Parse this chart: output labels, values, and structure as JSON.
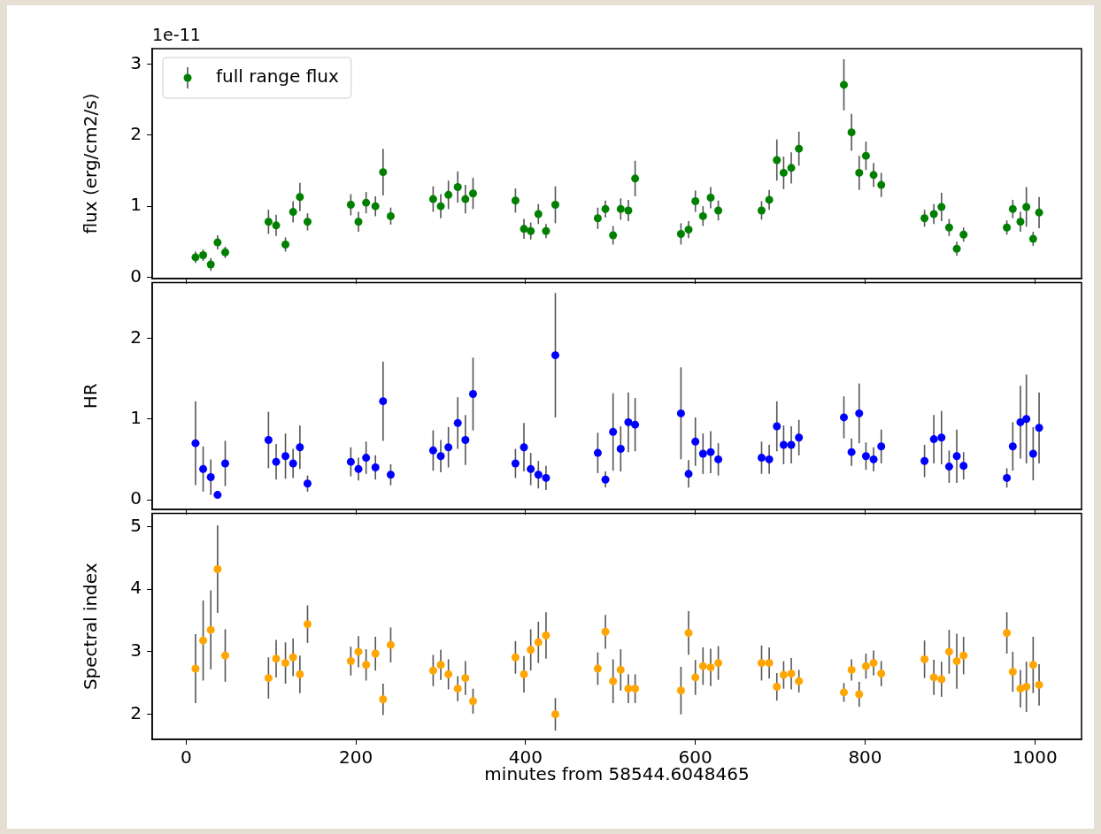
{
  "chart_data": [
    {
      "type": "scatter",
      "ylabel": "flux (erg/cm2/s)",
      "annotations": [
        "1e-11"
      ],
      "legend": "top left",
      "marker": "circle",
      "grid": false,
      "tick_labels": "y",
      "xlim": [
        -40,
        1055
      ],
      "xticks": [
        0,
        200,
        400,
        600,
        800,
        1000
      ],
      "ylim": [
        -0.02,
        3.22
      ],
      "yticks": [
        0,
        1,
        2,
        3
      ],
      "x": [
        11,
        20,
        29,
        37,
        46,
        97,
        106,
        117,
        126,
        134,
        143,
        194,
        203,
        212,
        223,
        232,
        241,
        291,
        300,
        309,
        320,
        329,
        338,
        388,
        398,
        406,
        415,
        424,
        435,
        485,
        494,
        503,
        512,
        521,
        529,
        583,
        592,
        600,
        609,
        618,
        627,
        678,
        687,
        696,
        704,
        713,
        722,
        775,
        784,
        793,
        801,
        810,
        819,
        870,
        881,
        890,
        899,
        908,
        916,
        967,
        974,
        983,
        990,
        998,
        1005
      ],
      "series": [
        {
          "name": "full range flux",
          "color": "#008000",
          "values": [
            0.28,
            0.31,
            0.18,
            0.49,
            0.35,
            0.78,
            0.73,
            0.46,
            0.92,
            1.13,
            0.78,
            1.02,
            0.78,
            1.05,
            1.0,
            1.48,
            0.86,
            1.1,
            1.0,
            1.16,
            1.27,
            1.1,
            1.18,
            1.08,
            0.68,
            0.65,
            0.89,
            0.65,
            1.02,
            0.83,
            0.96,
            0.59,
            0.96,
            0.94,
            1.39,
            0.61,
            0.67,
            1.07,
            0.86,
            1.12,
            0.94,
            0.94,
            1.09,
            1.65,
            1.47,
            1.54,
            1.81,
            2.71,
            2.04,
            1.47,
            1.71,
            1.44,
            1.3,
            0.83,
            0.89,
            0.99,
            0.7,
            0.4,
            0.6,
            0.7,
            0.96,
            0.78,
            0.99,
            0.54,
            0.91
          ],
          "errors": [
            0.08,
            0.08,
            0.09,
            0.1,
            0.08,
            0.17,
            0.15,
            0.1,
            0.15,
            0.2,
            0.12,
            0.15,
            0.14,
            0.15,
            0.14,
            0.33,
            0.12,
            0.18,
            0.17,
            0.2,
            0.22,
            0.2,
            0.22,
            0.17,
            0.14,
            0.12,
            0.14,
            0.1,
            0.26,
            0.15,
            0.12,
            0.13,
            0.15,
            0.15,
            0.25,
            0.15,
            0.12,
            0.15,
            0.14,
            0.15,
            0.14,
            0.13,
            0.14,
            0.29,
            0.23,
            0.22,
            0.24,
            0.36,
            0.26,
            0.24,
            0.2,
            0.17,
            0.17,
            0.12,
            0.14,
            0.2,
            0.12,
            0.1,
            0.1,
            0.1,
            0.13,
            0.14,
            0.28,
            0.1,
            0.22
          ]
        }
      ]
    },
    {
      "type": "scatter",
      "ylabel": "HR",
      "marker": "circle",
      "grid": false,
      "tick_labels": "y",
      "xlim": [
        -40,
        1055
      ],
      "xticks": [
        0,
        200,
        400,
        600,
        800,
        1000
      ],
      "ylim": [
        -0.12,
        2.69
      ],
      "yticks": [
        0,
        1,
        2
      ],
      "x": [
        11,
        20,
        29,
        37,
        46,
        97,
        106,
        117,
        126,
        134,
        143,
        194,
        203,
        212,
        223,
        232,
        241,
        291,
        300,
        309,
        320,
        329,
        338,
        388,
        398,
        406,
        415,
        424,
        435,
        485,
        494,
        503,
        512,
        521,
        529,
        583,
        592,
        600,
        609,
        618,
        627,
        678,
        687,
        696,
        704,
        713,
        722,
        775,
        784,
        793,
        801,
        810,
        819,
        870,
        881,
        890,
        899,
        908,
        916,
        967,
        974,
        983,
        990,
        998,
        1005
      ],
      "series": [
        {
          "color": "#0000ff",
          "values": [
            0.7,
            0.38,
            0.28,
            0.06,
            0.45,
            0.74,
            0.47,
            0.54,
            0.45,
            0.65,
            0.2,
            0.47,
            0.38,
            0.52,
            0.4,
            1.22,
            0.31,
            0.61,
            0.54,
            0.65,
            0.95,
            0.74,
            1.31,
            0.45,
            0.65,
            0.38,
            0.31,
            0.27,
            1.79,
            0.58,
            0.25,
            0.84,
            0.63,
            0.96,
            0.93,
            1.07,
            0.32,
            0.72,
            0.57,
            0.59,
            0.5,
            0.52,
            0.5,
            0.91,
            0.68,
            0.68,
            0.77,
            1.02,
            0.59,
            1.07,
            0.54,
            0.5,
            0.66,
            0.48,
            0.75,
            0.77,
            0.41,
            0.54,
            0.42,
            0.27,
            0.66,
            0.96,
            1.0,
            0.57,
            0.89
          ],
          "errors": [
            0.52,
            0.28,
            0.22,
            null,
            0.28,
            0.35,
            0.22,
            0.28,
            0.18,
            0.27,
            0.1,
            0.18,
            0.14,
            0.2,
            0.15,
            0.49,
            0.13,
            0.25,
            0.2,
            0.25,
            0.32,
            0.31,
            0.45,
            0.18,
            0.3,
            0.2,
            0.17,
            0.15,
            0.77,
            0.25,
            0.1,
            0.48,
            0.28,
            0.37,
            0.33,
            0.57,
            0.17,
            0.3,
            0.25,
            0.26,
            0.2,
            0.2,
            0.18,
            0.31,
            0.24,
            0.23,
            0.22,
            0.26,
            0.17,
            0.37,
            0.17,
            0.15,
            0.21,
            0.2,
            0.3,
            0.33,
            0.2,
            0.33,
            0.17,
            0.12,
            0.3,
            0.45,
            0.55,
            0.33,
            0.44
          ]
        }
      ]
    },
    {
      "type": "scatter",
      "xlabel": "minutes from 58544.6048465",
      "ylabel": "Spectral index",
      "marker": "circle",
      "grid": false,
      "xlim": [
        -40,
        1055
      ],
      "xticks": [
        0,
        200,
        400,
        600,
        800,
        1000
      ],
      "ylim": [
        1.6,
        5.21
      ],
      "yticks": [
        2,
        3,
        4,
        5
      ],
      "x": [
        11,
        20,
        29,
        37,
        46,
        97,
        106,
        117,
        126,
        134,
        143,
        194,
        203,
        212,
        223,
        232,
        241,
        291,
        300,
        309,
        320,
        329,
        338,
        388,
        398,
        406,
        415,
        424,
        435,
        485,
        494,
        503,
        512,
        521,
        529,
        583,
        592,
        600,
        609,
        618,
        627,
        678,
        687,
        696,
        704,
        713,
        722,
        775,
        784,
        793,
        801,
        810,
        819,
        870,
        881,
        890,
        899,
        908,
        916,
        967,
        974,
        983,
        990,
        998,
        1005
      ],
      "series": [
        {
          "color": "#ffa500",
          "values": [
            2.73,
            3.18,
            3.35,
            4.32,
            2.94,
            2.58,
            2.89,
            2.82,
            2.91,
            2.64,
            3.44,
            2.85,
            3.0,
            2.79,
            2.97,
            2.24,
            3.11,
            2.7,
            2.79,
            2.64,
            2.41,
            2.58,
            2.21,
            2.91,
            2.64,
            3.03,
            3.15,
            3.26,
            2.0,
            2.73,
            3.32,
            2.53,
            2.71,
            2.41,
            2.41,
            2.38,
            3.3,
            2.59,
            2.77,
            2.75,
            2.82,
            2.82,
            2.82,
            2.44,
            2.63,
            2.65,
            2.53,
            2.35,
            2.71,
            2.32,
            2.77,
            2.82,
            2.65,
            2.88,
            2.59,
            2.56,
            3.0,
            2.85,
            2.94,
            3.3,
            2.68,
            2.41,
            2.44,
            2.79,
            2.47
          ],
          "errors": [
            0.55,
            0.64,
            0.63,
            0.7,
            0.42,
            0.33,
            0.3,
            0.33,
            0.3,
            0.3,
            0.3,
            0.23,
            0.25,
            0.25,
            0.27,
            0.25,
            0.28,
            0.25,
            0.24,
            0.24,
            0.2,
            0.27,
            0.2,
            0.26,
            0.29,
            0.33,
            0.33,
            0.37,
            0.26,
            0.26,
            0.27,
            0.35,
            0.33,
            0.23,
            0.23,
            0.38,
            0.35,
            0.28,
            0.3,
            0.3,
            0.27,
            0.28,
            0.25,
            0.22,
            0.22,
            0.25,
            0.18,
            0.15,
            0.17,
            0.2,
            0.2,
            0.2,
            0.2,
            0.3,
            0.28,
            0.28,
            0.35,
            0.44,
            0.3,
            0.33,
            0.32,
            0.3,
            0.4,
            0.45,
            0.33
          ]
        }
      ]
    }
  ]
}
